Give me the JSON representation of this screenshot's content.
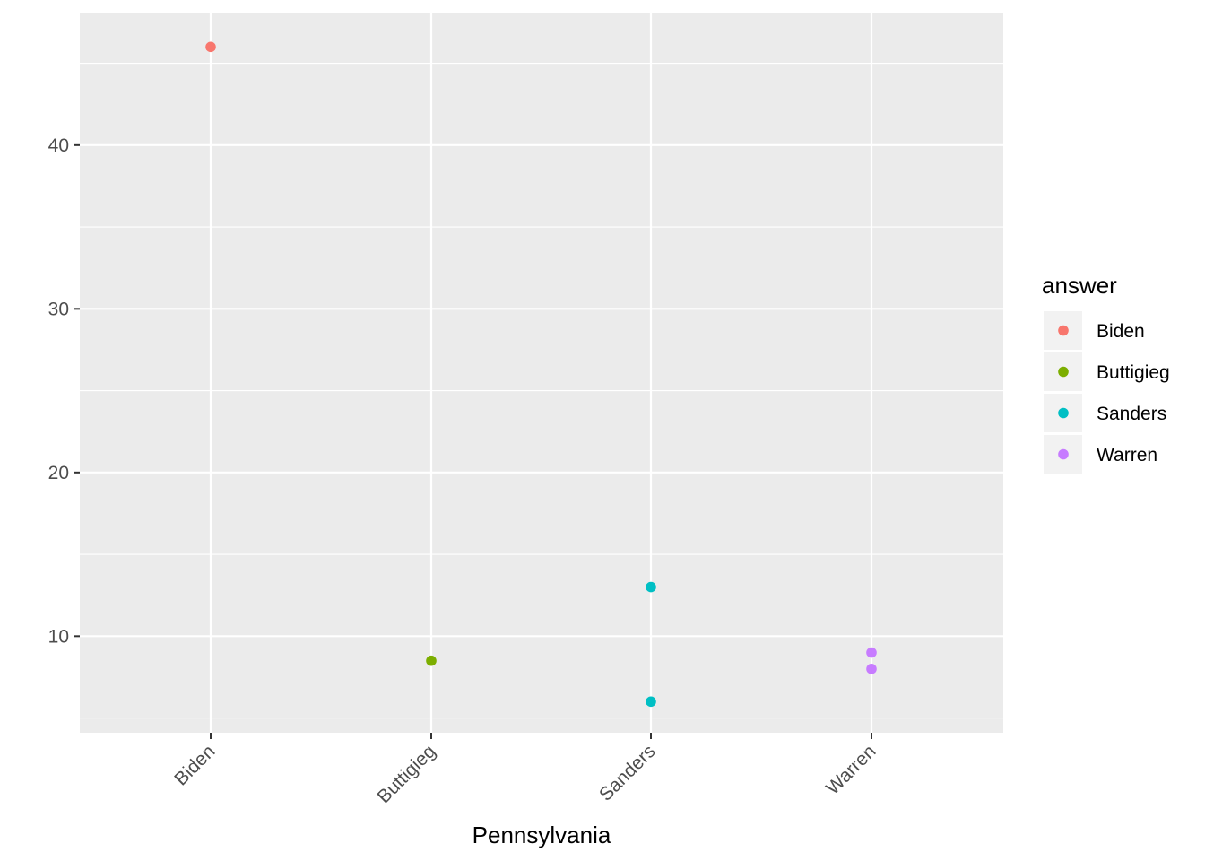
{
  "chart_data": {
    "type": "scatter",
    "title": "",
    "xlabel": "Pennsylvania",
    "ylabel": "",
    "categories": [
      "Biden",
      "Buttigieg",
      "Sanders",
      "Warren"
    ],
    "ylim": [
      4.1,
      48.1
    ],
    "yticks": [
      10,
      20,
      30,
      40
    ],
    "grid": true,
    "legend": {
      "title": "answer",
      "position": "right",
      "entries": [
        "Biden",
        "Buttigieg",
        "Sanders",
        "Warren"
      ]
    },
    "colors": {
      "Biden": "#F8766D",
      "Buttigieg": "#7CAE00",
      "Sanders": "#00BFC4",
      "Warren": "#C77CFF"
    },
    "points": [
      {
        "x": "Biden",
        "y": 46,
        "answer": "Biden"
      },
      {
        "x": "Buttigieg",
        "y": 8.5,
        "answer": "Buttigieg"
      },
      {
        "x": "Sanders",
        "y": 13,
        "answer": "Sanders"
      },
      {
        "x": "Sanders",
        "y": 6,
        "answer": "Sanders"
      },
      {
        "x": "Warren",
        "y": 9,
        "answer": "Warren"
      },
      {
        "x": "Warren",
        "y": 8,
        "answer": "Warren"
      }
    ]
  }
}
